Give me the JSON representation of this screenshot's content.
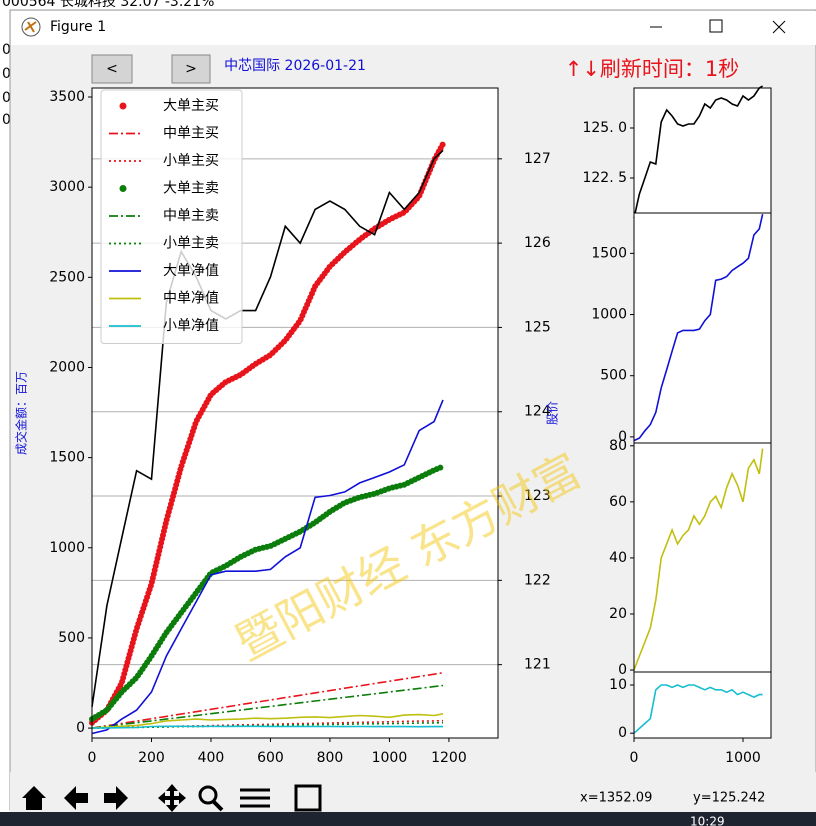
{
  "window": {
    "title": "Figure 1",
    "background_text": "000564 长城科技  32.07  -3.21%",
    "background_lines": [
      "0",
      "0",
      "0",
      "0"
    ],
    "status_x": "x=1352.09",
    "status_y": "y=125.242",
    "clock": "10:29",
    "nav_prev": "<",
    "nav_next": ">"
  },
  "watermark": "暨阳财经  东方财富",
  "chart_data": [
    {
      "type": "line",
      "title": "中芯国际  2026-01-21",
      "annotation": "↑↓刷新时间：1秒",
      "ylabel": "成交金额：百万",
      "y2label": "股价",
      "legend": "upper left",
      "grid": "y2",
      "x": [
        0,
        50,
        100,
        150,
        200,
        250,
        300,
        350,
        400,
        450,
        500,
        550,
        600,
        650,
        700,
        750,
        800,
        850,
        900,
        950,
        1000,
        1050,
        1100,
        1150,
        1180
      ],
      "xlim": [
        0,
        1365
      ],
      "xticks": [
        0,
        200,
        400,
        600,
        800,
        1000,
        1200
      ],
      "ylim": [
        -55,
        3550
      ],
      "yticks": [
        0,
        500,
        1000,
        1500,
        2000,
        2500,
        3000,
        3500
      ],
      "y2lim": [
        120.13,
        127.84
      ],
      "y2ticks": [
        121,
        122,
        123,
        124,
        125,
        126,
        127
      ],
      "series": [
        {
          "name": "大单主买",
          "color": "#e8141c",
          "style": "dots",
          "values": [
            30,
            100,
            250,
            550,
            800,
            1150,
            1450,
            1700,
            1850,
            1920,
            1960,
            2020,
            2070,
            2150,
            2260,
            2450,
            2560,
            2640,
            2710,
            2770,
            2820,
            2860,
            2950,
            3150,
            3240
          ]
        },
        {
          "name": "中单主买",
          "color": "#e8141c",
          "style": "dashdot",
          "values": [
            0,
            13,
            26,
            39,
            52,
            65,
            78,
            91,
            104,
            117,
            130,
            143,
            156,
            169,
            182,
            195,
            208,
            221,
            234,
            247,
            260,
            273,
            286,
            299,
            307
          ]
        },
        {
          "name": "小单主买",
          "color": "#e8141c",
          "style": "dotted",
          "values": [
            0,
            2,
            4,
            5,
            7,
            9,
            11,
            12,
            14,
            16,
            18,
            19,
            21,
            23,
            25,
            26,
            28,
            30,
            32,
            33,
            35,
            37,
            39,
            40,
            41
          ]
        },
        {
          "name": "大单主卖",
          "color": "#0b7d0b",
          "style": "dots",
          "values": [
            50,
            100,
            200,
            280,
            400,
            530,
            640,
            750,
            860,
            900,
            950,
            990,
            1010,
            1050,
            1090,
            1140,
            1200,
            1250,
            1280,
            1300,
            1330,
            1350,
            1390,
            1430,
            1450
          ]
        },
        {
          "name": "中单主卖",
          "color": "#0b7d0b",
          "style": "dashdot",
          "values": [
            0,
            10,
            20,
            30,
            40,
            50,
            60,
            70,
            80,
            90,
            100,
            110,
            120,
            130,
            140,
            150,
            160,
            170,
            180,
            190,
            200,
            210,
            220,
            230,
            236
          ]
        },
        {
          "name": "小单主卖",
          "color": "#0b7d0b",
          "style": "dotted",
          "values": [
            0,
            1,
            3,
            4,
            5,
            6,
            8,
            9,
            10,
            11,
            13,
            14,
            15,
            16,
            18,
            19,
            20,
            21,
            23,
            24,
            25,
            26,
            28,
            29,
            30
          ]
        },
        {
          "name": "大单净值",
          "color": "#1010d8",
          "style": "solid",
          "values": [
            -30,
            -10,
            50,
            100,
            200,
            400,
            550,
            700,
            850,
            870,
            870,
            870,
            880,
            950,
            1000,
            1280,
            1290,
            1310,
            1360,
            1390,
            1420,
            1460,
            1650,
            1700,
            1820
          ]
        },
        {
          "name": "中单净值",
          "color": "#c0bf10",
          "style": "solid",
          "values": [
            0,
            5,
            10,
            15,
            25,
            40,
            45,
            50,
            45,
            48,
            50,
            55,
            52,
            55,
            60,
            62,
            58,
            65,
            70,
            66,
            60,
            72,
            75,
            70,
            79
          ]
        },
        {
          "name": "小单净值",
          "color": "#17becf",
          "style": "solid",
          "values": [
            0,
            1,
            2,
            3,
            9,
            10,
            10,
            9.5,
            10,
            9.5,
            10,
            10,
            9.5,
            9,
            9.5,
            9,
            9,
            8.5,
            9,
            8,
            8.5,
            8,
            7.5,
            8,
            8
          ]
        },
        {
          "color": "#000000",
          "style": "solid",
          "axis": "y2",
          "values": [
            120.5,
            121.7,
            122.5,
            123.3,
            123.2,
            125.3,
            125.9,
            125.6,
            125.2,
            125.1,
            125.2,
            125.2,
            125.6,
            126.2,
            126.0,
            126.4,
            126.5,
            126.4,
            126.2,
            126.1,
            126.6,
            126.4,
            126.6,
            127.0,
            127.1
          ]
        }
      ]
    },
    {
      "type": "line",
      "x": [
        0,
        50,
        100,
        150,
        200,
        250,
        300,
        350,
        400,
        450,
        500,
        550,
        600,
        650,
        700,
        750,
        800,
        850,
        900,
        950,
        1000,
        1050,
        1100,
        1150,
        1180
      ],
      "xlim": [
        0,
        1257
      ],
      "ylim": [
        120.75,
        127
      ],
      "yticks": [
        {
          "value": 122.5,
          "label": "122. 5"
        },
        {
          "value": 125,
          "label": "125. 0"
        }
      ],
      "series": [
        {
          "color": "#000000",
          "style": "solid",
          "values": [
            120.5,
            121.7,
            122.5,
            123.3,
            123.2,
            125.3,
            125.9,
            125.6,
            125.2,
            125.1,
            125.2,
            125.2,
            125.6,
            126.2,
            126.0,
            126.4,
            126.5,
            126.4,
            126.2,
            126.1,
            126.6,
            126.4,
            126.6,
            127.0,
            127.1
          ]
        }
      ]
    },
    {
      "type": "line",
      "x": [
        0,
        50,
        100,
        150,
        200,
        250,
        300,
        350,
        400,
        450,
        500,
        550,
        600,
        650,
        700,
        750,
        800,
        850,
        900,
        950,
        1000,
        1050,
        1100,
        1150,
        1180
      ],
      "xlim": [
        0,
        1257
      ],
      "ylim": [
        -50,
        1830
      ],
      "yticks": [
        0,
        500,
        1000,
        1500
      ],
      "series": [
        {
          "color": "#1010d8",
          "style": "solid",
          "values": [
            -30,
            -10,
            50,
            100,
            200,
            400,
            550,
            700,
            850,
            870,
            870,
            870,
            880,
            950,
            1000,
            1280,
            1290,
            1310,
            1360,
            1390,
            1420,
            1460,
            1650,
            1700,
            1820
          ]
        }
      ]
    },
    {
      "type": "line",
      "x": [
        0,
        50,
        100,
        150,
        200,
        250,
        300,
        350,
        400,
        450,
        500,
        550,
        600,
        650,
        700,
        750,
        800,
        850,
        900,
        950,
        1000,
        1050,
        1100,
        1150,
        1180
      ],
      "xlim": [
        0,
        1257
      ],
      "ylim": [
        -0.7,
        81
      ],
      "yticks": [
        0,
        20,
        40,
        60,
        80
      ],
      "series": [
        {
          "color": "#c0bf10",
          "style": "solid",
          "values": [
            0,
            5,
            10,
            15,
            25,
            40,
            45,
            50,
            45,
            48,
            50,
            55,
            52,
            55,
            60,
            62,
            58,
            65,
            70,
            66,
            60,
            72,
            75,
            70,
            79
          ]
        }
      ]
    },
    {
      "type": "line",
      "x": [
        0,
        50,
        100,
        150,
        200,
        250,
        300,
        350,
        400,
        450,
        500,
        550,
        600,
        650,
        700,
        750,
        800,
        850,
        900,
        950,
        1000,
        1050,
        1100,
        1150,
        1180
      ],
      "xlim": [
        0,
        1257
      ],
      "ylim": [
        -1,
        12.7
      ],
      "yticks": [
        0,
        10
      ],
      "xticks": [
        0,
        1000
      ],
      "series": [
        {
          "color": "#17becf",
          "style": "solid",
          "values": [
            0,
            1,
            2,
            3,
            9,
            10,
            10,
            9.5,
            10,
            9.5,
            10,
            10,
            9.5,
            9,
            9.5,
            9,
            9,
            8.5,
            9,
            8,
            8.5,
            8,
            7.5,
            8,
            8
          ]
        }
      ]
    }
  ]
}
